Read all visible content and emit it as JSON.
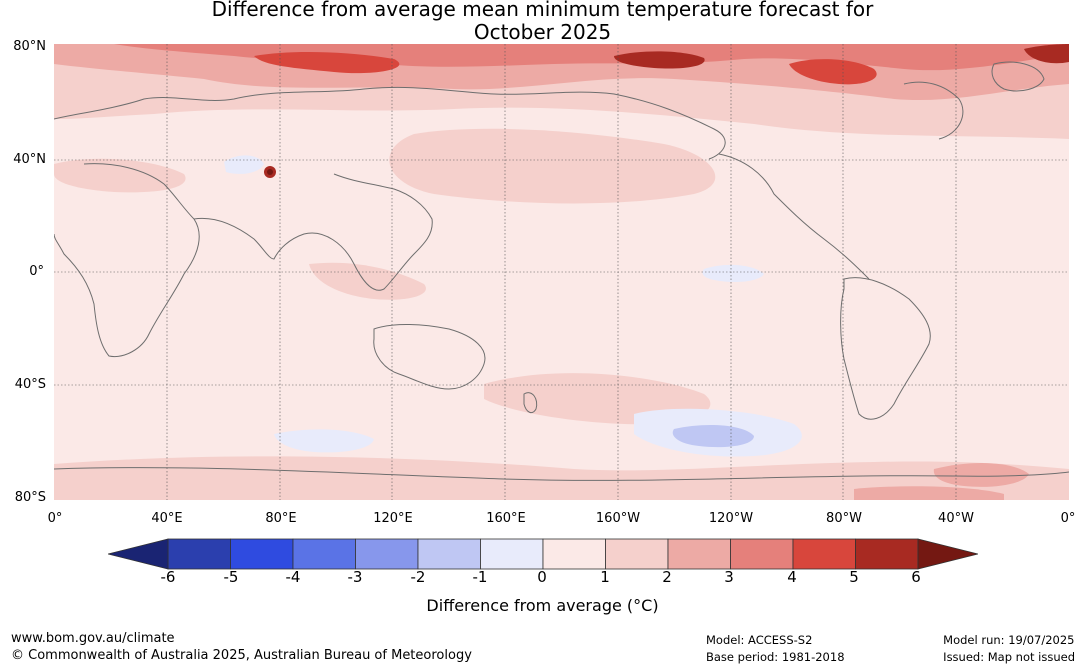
{
  "title": {
    "line1": "Difference from average mean minimum temperature forecast for",
    "line2": "October 2025"
  },
  "map": {
    "latitude_labels": [
      "80°N",
      "40°N",
      "0°",
      "40°S",
      "80°S"
    ],
    "longitude_labels": [
      "0°",
      "40°E",
      "80°E",
      "120°E",
      "160°E",
      "160°W",
      "120°W",
      "80°W",
      "40°W",
      "0°"
    ],
    "background_color": "#fbe9e7",
    "coastline_color": "#6e6e6e",
    "grid": true
  },
  "colorbar": {
    "label": "Difference from average (°C)",
    "ticks": [
      "-6",
      "-5",
      "-4",
      "-3",
      "-2",
      "-1",
      "0",
      "1",
      "2",
      "3",
      "4",
      "5",
      "6"
    ],
    "colors": {
      "below": "#1a2473",
      "bins": [
        "#2b3fae",
        "#2f4be0",
        "#5a73e6",
        "#8797ec",
        "#bfc7f3",
        "#e8ebfb",
        "#fbe9e7",
        "#f5d0cc",
        "#edaaa5",
        "#e5807b",
        "#d8463c",
        "#a82a22"
      ],
      "above": "#741812"
    }
  },
  "footer": {
    "website": "www.bom.gov.au/climate",
    "copyright": "© Commonwealth of Australia 2025, Australian Bureau of Meteorology",
    "model": "Model: ACCESS-S2",
    "base_period": "Base period: 1981-2018",
    "model_run": "Model run: 19/07/2025",
    "issued": "Issued: Map not issued"
  }
}
